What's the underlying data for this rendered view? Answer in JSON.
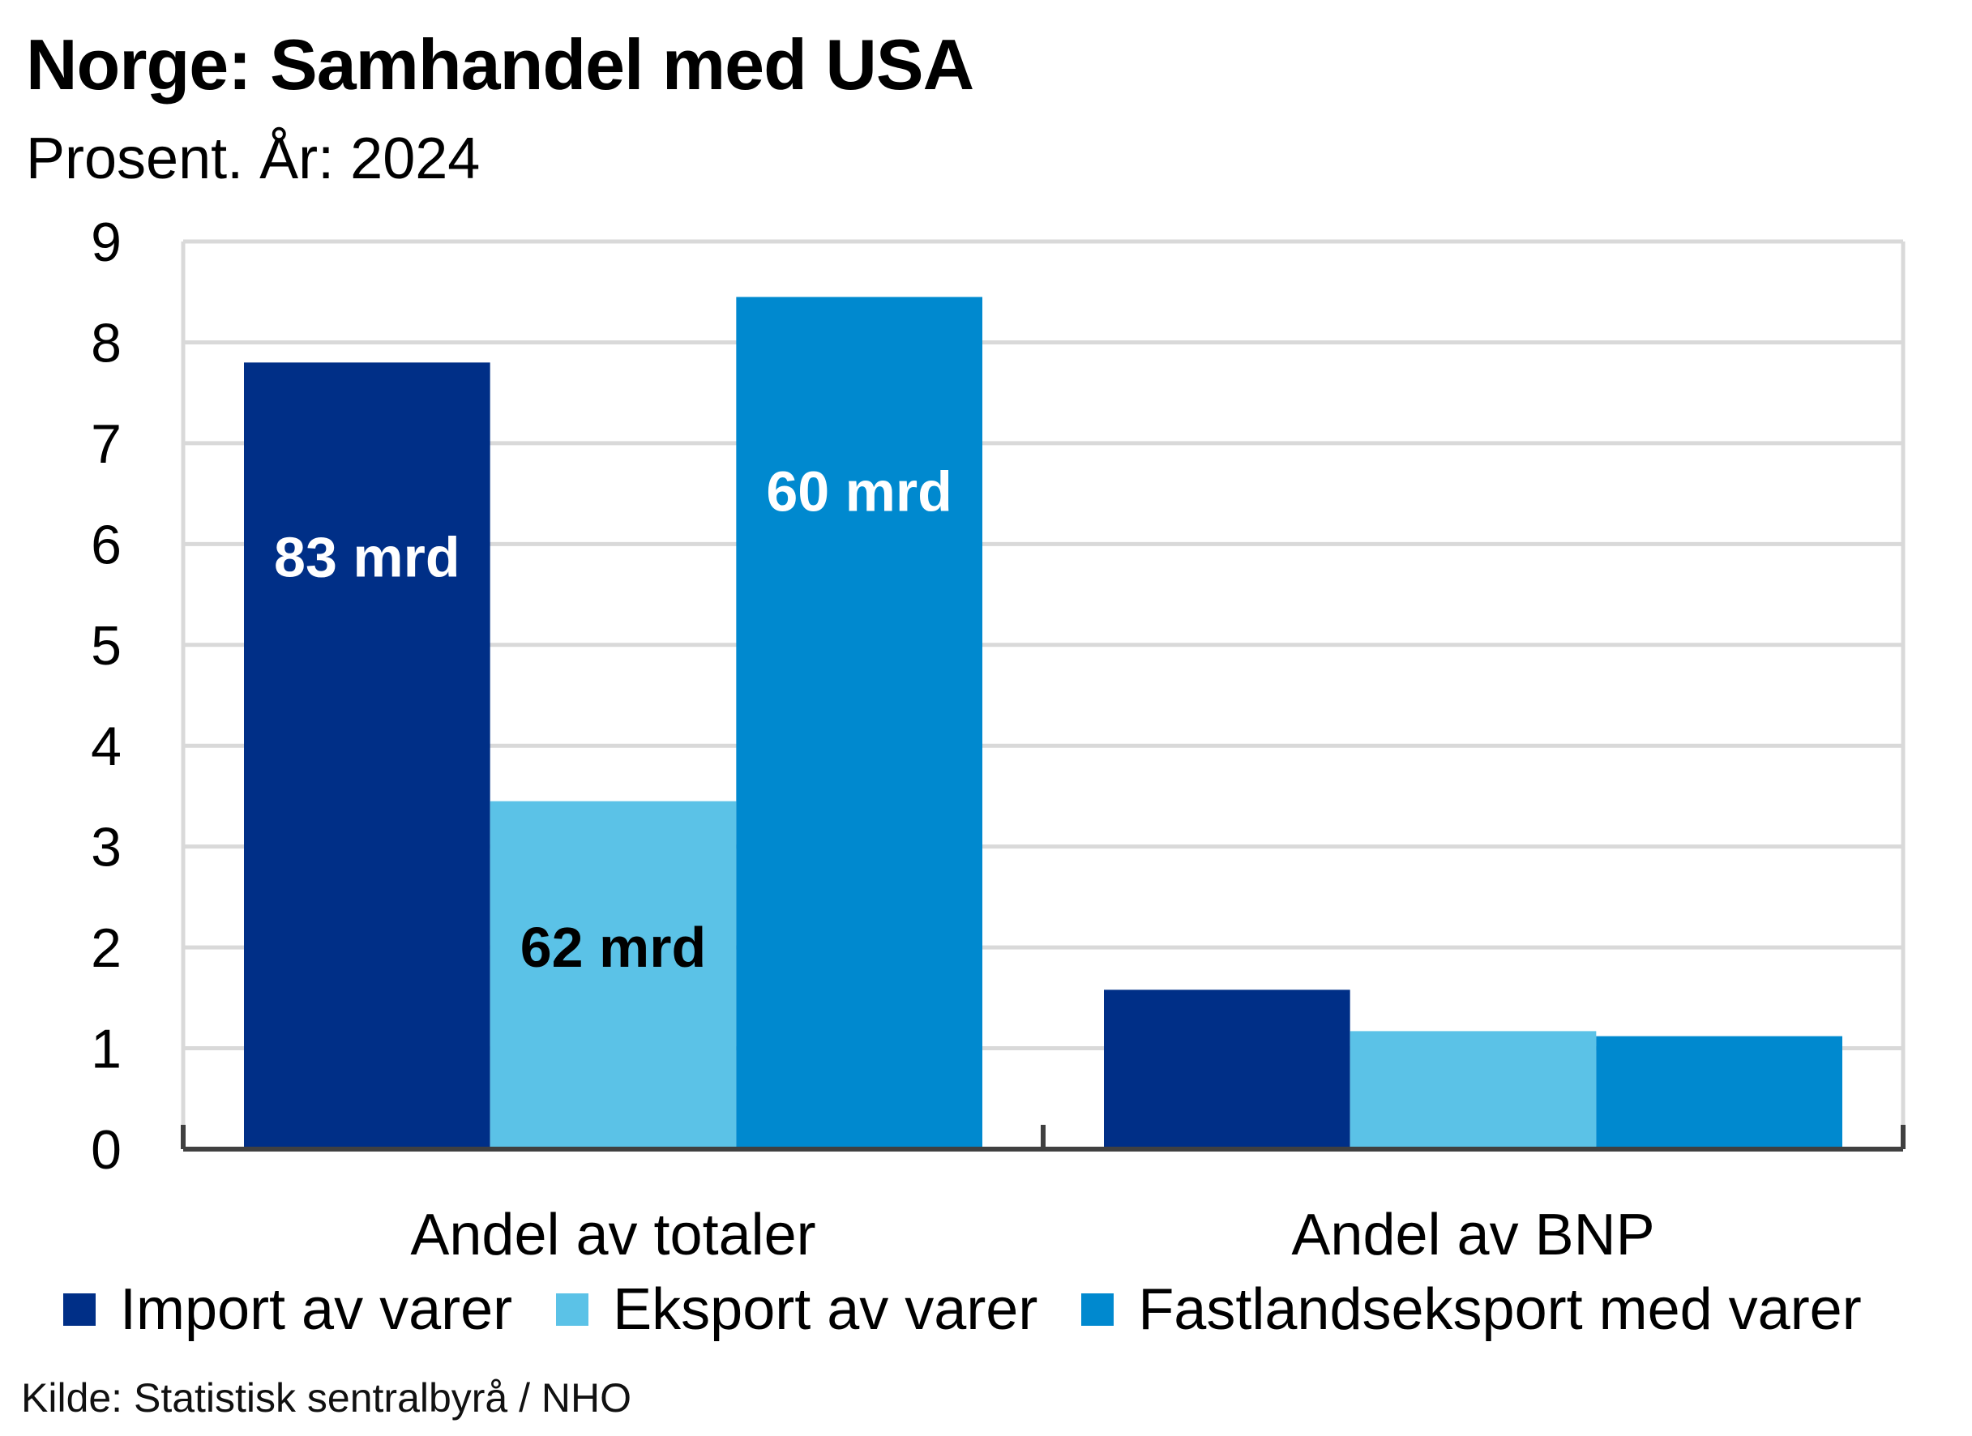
{
  "chart_data": {
    "type": "bar",
    "title": "Norge:  Samhandel  med USA",
    "subtitle": "Prosent. År: 2024",
    "categories": [
      "Andel av totaler",
      "Andel av BNP"
    ],
    "series": [
      {
        "name": "Import av varer",
        "color": "#002F87",
        "values": [
          7.8,
          1.58
        ],
        "bar_labels": [
          "83 mrd",
          ""
        ],
        "label_color": "#ffffff"
      },
      {
        "name": "Eksport av varer",
        "color": "#5BC2E7",
        "values": [
          3.45,
          1.17
        ],
        "bar_labels": [
          "62 mrd",
          ""
        ],
        "label_color": "#000000"
      },
      {
        "name": "Fastlandseksport med varer",
        "color": "#0089CF",
        "values": [
          8.45,
          1.12
        ],
        "bar_labels": [
          "60 mrd",
          ""
        ],
        "label_color": "#ffffff"
      }
    ],
    "ylim": [
      0,
      9
    ],
    "yticks": [
      0,
      1,
      2,
      3,
      4,
      5,
      6,
      7,
      8,
      9
    ],
    "xlabel": "",
    "ylabel": "",
    "grid": true,
    "legend": "bottom",
    "source": "Kilde: Statistisk sentralbyrå / NHO"
  }
}
